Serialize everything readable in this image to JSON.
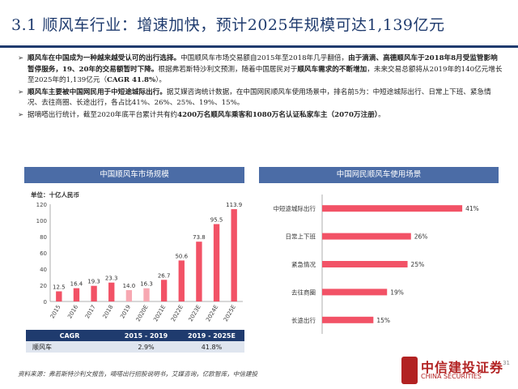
{
  "header": {
    "title": "3.1 顺风车行业：增速加快，预计2025年规模可达1,139亿元"
  },
  "bullets": [
    {
      "lead": "顺风车在中国成为一种越来越受认可的出行选择。",
      "body1": "中国顺风车市场交易额自2015年至2018年几乎翻倍，",
      "bold2": "由于滴滴、高德顺风车于2018年8月受监管影响暂停服务，19、20年的交易额暂时下降。",
      "body3": "根据弗若斯特沙利文预测，随着中国居民对于",
      "bold4": "顺风车需求的不断增加",
      "body5": "，未来交易总额将从2019年的140亿元增长至2025年的1,139亿元（",
      "bold6": "CAGR 41.8%",
      "body7": "）。"
    },
    {
      "lead": "顺风车主要被中国网民用于中短途城际出行。",
      "body": "据艾媒咨询统计数据，在中国网民顺风车使用场景中，排名前5为：中短途城际出行、日常上下班、紧急情况、去往商圈、长途出行，各占比41%、26%、25%、19%、15%。"
    },
    {
      "body1": "据嘀嗒出行统计，截至2020年底平台累计共有约",
      "bold2": "4200万名顺风车乘客和1080万名认证私家车主（2070万注册）",
      "body3": "。"
    }
  ],
  "left_panel": {
    "title": "中国顺风车市场规模",
    "unit": "单位：十亿人民币"
  },
  "right_panel": {
    "title": "中国网民顺风车使用场景"
  },
  "chart_data": [
    {
      "type": "bar",
      "title": "中国顺风车市场规模",
      "ylabel": "单位：十亿人民币",
      "categories": [
        "2015",
        "2016",
        "2017",
        "2018",
        "2019",
        "2020E",
        "2021E",
        "2022E",
        "2023E",
        "2024E",
        "2025E"
      ],
      "values": [
        12.5,
        16.4,
        19.3,
        23.3,
        14.0,
        16.3,
        26.7,
        50.6,
        73.8,
        95.5,
        113.9
      ],
      "value_labels": [
        "12.5",
        "16.4",
        "19.3",
        "23.3",
        "14.0",
        "16.3",
        "26.7",
        "50.6",
        "73.8",
        "95.5",
        "113.9"
      ],
      "ylim": [
        0,
        120
      ],
      "yticks": [
        0,
        20,
        40,
        60,
        80,
        100,
        120
      ],
      "grid": false,
      "colors": {
        "bar": "#f25266",
        "bar_light": "#f7a8b2"
      }
    },
    {
      "type": "bar",
      "orientation": "horizontal",
      "title": "中国网民顺风车使用场景",
      "categories": [
        "中短途城际出行",
        "日常上下班",
        "紧急情况",
        "去往商圈",
        "长途出行"
      ],
      "values": [
        41,
        26,
        25,
        19,
        15
      ],
      "value_labels": [
        "41%",
        "26%",
        "25%",
        "19%",
        "15%"
      ],
      "xlim": [
        0,
        45
      ],
      "colors": {
        "bar": "#f25266"
      }
    }
  ],
  "cagr_table": {
    "headers": [
      "CAGR",
      "2015 - 2019",
      "2019 - 2025E"
    ],
    "row": {
      "label": "顺风车",
      "v1": "2.9%",
      "v2": "41.8%"
    }
  },
  "footer": {
    "source": "资料来源：弗若斯特沙利文报告，嘀嗒出行招股说明书，艾媒咨询，亿欧智库，中信建投",
    "page": "31",
    "logo_name": "中信建投证券",
    "logo_sub": "CHINA SECURITIES"
  }
}
